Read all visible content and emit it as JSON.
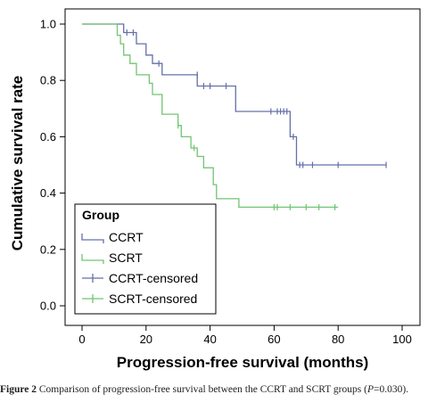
{
  "chart_data": {
    "type": "line",
    "subtype": "kaplan-meier",
    "title": "",
    "xlabel": "Progression-free survival (months)",
    "ylabel": "Cumulative survival rate",
    "xlim": [
      0,
      100
    ],
    "ylim": [
      0.0,
      1.0
    ],
    "x_ticks": [
      0,
      20,
      40,
      60,
      80,
      100
    ],
    "x_tick_labels": [
      "0",
      "20",
      "40",
      "60",
      "80",
      "100"
    ],
    "y_ticks": [
      0.0,
      0.2,
      0.4,
      0.6,
      0.8,
      1.0
    ],
    "y_tick_labels": [
      "0.0",
      "0.2",
      "0.4",
      "0.6",
      "0.8",
      "1.0"
    ],
    "grid": false,
    "legend": {
      "title": "Group",
      "placement": "bottom-left",
      "entries": [
        "CCRT",
        "SCRT",
        "CCRT-censored",
        "SCRT-censored"
      ]
    },
    "colors": {
      "CCRT": "#6470a8",
      "SCRT": "#72c472",
      "frame": "#000000"
    },
    "series": [
      {
        "name": "CCRT",
        "steps": [
          [
            0,
            1.0
          ],
          [
            13,
            0.97
          ],
          [
            17,
            0.93
          ],
          [
            20,
            0.89
          ],
          [
            22,
            0.86
          ],
          [
            25,
            0.82
          ],
          [
            36,
            0.78
          ],
          [
            48,
            0.69
          ],
          [
            65,
            0.6
          ],
          [
            67,
            0.5
          ],
          [
            95,
            0.5
          ]
        ],
        "censored": [
          [
            14,
            0.97
          ],
          [
            16,
            0.97
          ],
          [
            24,
            0.86
          ],
          [
            36,
            0.82
          ],
          [
            38,
            0.78
          ],
          [
            40,
            0.78
          ],
          [
            45,
            0.78
          ],
          [
            59,
            0.69
          ],
          [
            61,
            0.69
          ],
          [
            62,
            0.69
          ],
          [
            63,
            0.69
          ],
          [
            64,
            0.69
          ],
          [
            66,
            0.6
          ],
          [
            68,
            0.5
          ],
          [
            69,
            0.5
          ],
          [
            72,
            0.5
          ],
          [
            80,
            0.5
          ],
          [
            95,
            0.5
          ]
        ]
      },
      {
        "name": "SCRT",
        "steps": [
          [
            0,
            1.0
          ],
          [
            11,
            0.96
          ],
          [
            12,
            0.93
          ],
          [
            13,
            0.89
          ],
          [
            15,
            0.86
          ],
          [
            17,
            0.82
          ],
          [
            21,
            0.79
          ],
          [
            22,
            0.75
          ],
          [
            25,
            0.68
          ],
          [
            30,
            0.64
          ],
          [
            31,
            0.6
          ],
          [
            34,
            0.56
          ],
          [
            36,
            0.53
          ],
          [
            38,
            0.49
          ],
          [
            41,
            0.43
          ],
          [
            42,
            0.38
          ],
          [
            49,
            0.35
          ],
          [
            80,
            0.35
          ]
        ],
        "censored": [
          [
            30,
            0.64
          ],
          [
            35,
            0.56
          ],
          [
            60,
            0.35
          ],
          [
            61,
            0.35
          ],
          [
            65,
            0.35
          ],
          [
            70,
            0.35
          ],
          [
            74,
            0.35
          ],
          [
            79,
            0.35
          ]
        ]
      }
    ]
  },
  "caption": {
    "figure_label": "Figure 2",
    "text": " Comparison of progression-free survival between the CCRT and SCRT groups (",
    "p_symbol": "P",
    "p_rest": "=0.030)."
  }
}
